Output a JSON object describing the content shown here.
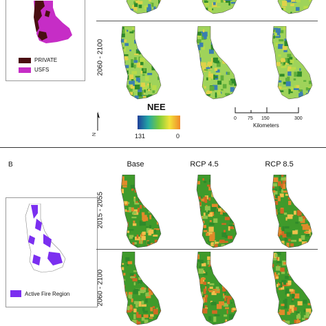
{
  "panel_a": {
    "inset_legend": [
      {
        "label": "PRIVATE",
        "color": "#4a0f12"
      },
      {
        "label": "USFS",
        "color": "#c62dc6"
      }
    ],
    "row_labels": [
      "2060 - 2100"
    ],
    "nee_legend": {
      "title": "NEE",
      "min_label": "131",
      "max_label": "0",
      "colors": [
        "#1f3f9a",
        "#22a7a6",
        "#7acb3a",
        "#f2e33a",
        "#f08a2a"
      ]
    },
    "north_label": "N",
    "scale_bar": {
      "ticks": [
        "0",
        "75",
        "150",
        "300"
      ],
      "unit": "Kilometers"
    }
  },
  "panel_b": {
    "label": "B",
    "columns": [
      "Base",
      "RCP 4.5",
      "RCP 8.5"
    ],
    "row_labels": [
      "2015 - 2055",
      "2060 - 2100"
    ],
    "inset_legend": [
      {
        "label": "Active Fire Region",
        "color": "#7b2ff0"
      }
    ]
  },
  "colors": {
    "map_green": "#3f9a2b",
    "map_light": "#9fd35a",
    "map_orange": "#e08a2a",
    "divider": "#555555"
  }
}
